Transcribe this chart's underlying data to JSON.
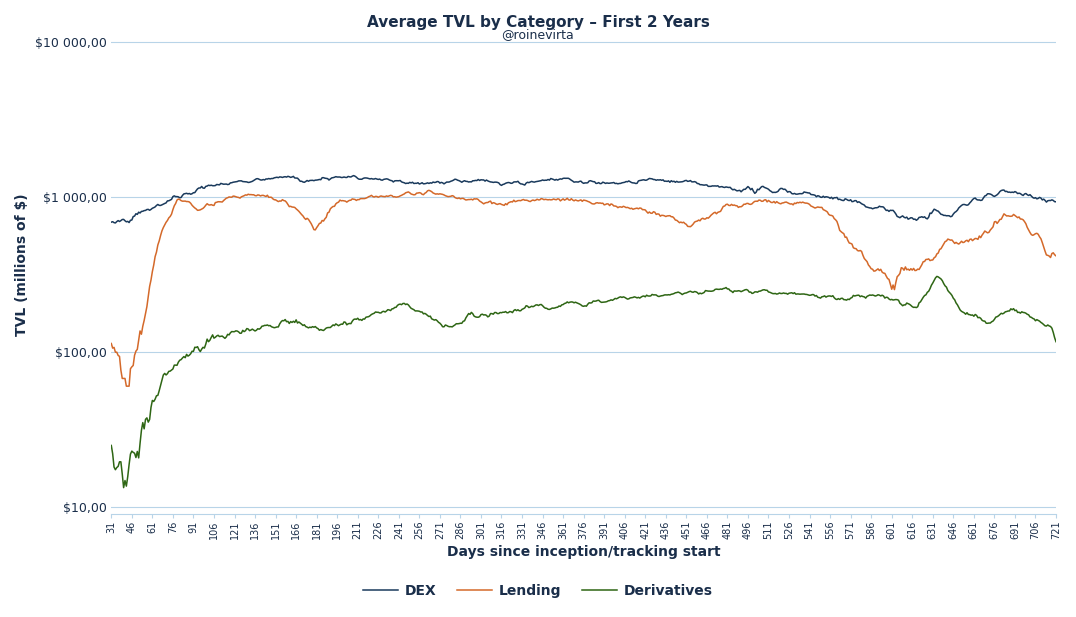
{
  "title": "Average TVL by Category – First 2 Years",
  "subtitle": "@roinevirta",
  "xlabel": "Days since inception/tracking start",
  "ylabel": "TVL (millions of $)",
  "title_color": "#1a2e4a",
  "background_color": "#ffffff",
  "grid_color": "#b8d4e8",
  "line_colors": {
    "DEX": "#1a3a5c",
    "Lending": "#d4692a",
    "Derivatives": "#2e6614"
  },
  "ylim": [
    9,
    15000
  ],
  "yticks": [
    10,
    100,
    1000,
    10000
  ],
  "xtick_start": 31,
  "xtick_end": 721,
  "xtick_step": 15
}
